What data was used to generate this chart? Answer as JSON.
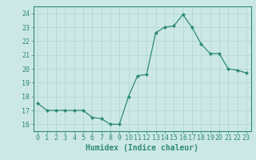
{
  "x": [
    0,
    1,
    2,
    3,
    4,
    5,
    6,
    7,
    8,
    9,
    10,
    11,
    12,
    13,
    14,
    15,
    16,
    17,
    18,
    19,
    20,
    21,
    22,
    23
  ],
  "y": [
    17.5,
    17.0,
    17.0,
    17.0,
    17.0,
    17.0,
    16.5,
    16.4,
    16.0,
    16.0,
    18.0,
    19.5,
    19.6,
    22.6,
    23.0,
    23.1,
    23.9,
    23.0,
    21.8,
    21.1,
    21.1,
    20.0,
    19.9,
    19.7
  ],
  "line_color": "#2e8b72",
  "marker": "D",
  "marker_size": 2.0,
  "bg_color": "#cce8e6",
  "grid_color": "#b0d8d5",
  "axis_color": "#2e8b72",
  "xlabel": "Humidex (Indice chaleur)",
  "ylabel": "",
  "ylim": [
    15.5,
    24.5
  ],
  "xlim": [
    -0.5,
    23.5
  ],
  "yticks": [
    16,
    17,
    18,
    19,
    20,
    21,
    22,
    23,
    24
  ],
  "xticks": [
    0,
    1,
    2,
    3,
    4,
    5,
    6,
    7,
    8,
    9,
    10,
    11,
    12,
    13,
    14,
    15,
    16,
    17,
    18,
    19,
    20,
    21,
    22,
    23
  ],
  "xlabel_color": "#2e8b72",
  "tick_color": "#2e8b72",
  "label_fontsize": 7,
  "tick_fontsize": 6
}
